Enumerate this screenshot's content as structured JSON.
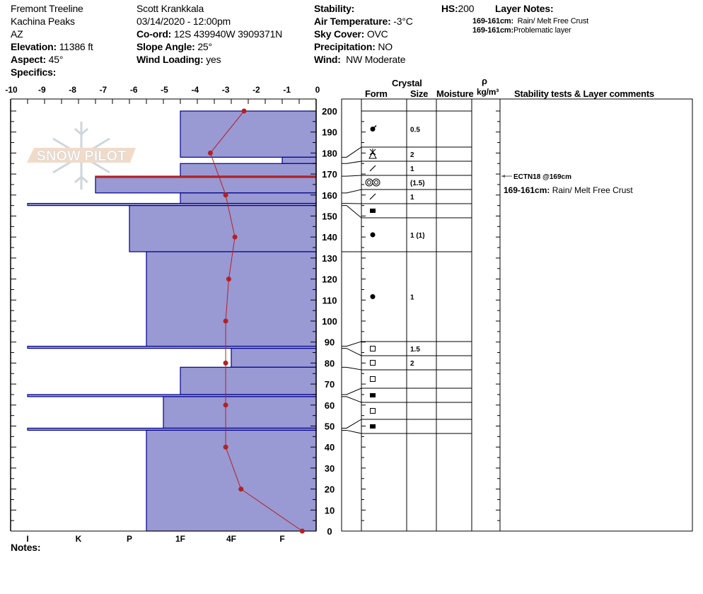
{
  "header": {
    "location": "Fremont Treeline",
    "range": "Kachina Peaks",
    "state": "AZ",
    "elevation_label": "Elevation:",
    "elevation": "11386 ft",
    "aspect_label": "Aspect:",
    "aspect": "45°",
    "specifics_label": "Specifics:",
    "observer": "Scott Krankkala",
    "datetime": "03/14/2020 - 12:00pm",
    "coord_label": "Co-ord:",
    "coord": "12S 439940W 3909371N",
    "slope_label": "Slope Angle:",
    "slope": "25°",
    "wind_loading_label": "Wind Loading:",
    "wind_loading": "yes",
    "stability_label": "Stability:",
    "air_temp_label": "Air Temperature:",
    "air_temp": "-3°C",
    "sky_label": "Sky Cover:",
    "sky": "OVC",
    "precip_label": "Precipitation:",
    "precip": "NO",
    "wind_label": "Wind:",
    "wind": "NW Moderate",
    "hs_label": "HS:",
    "hs": "200",
    "layer_notes_label": "Layer Notes:",
    "layer_notes": [
      {
        "range": "169-161cm:",
        "text": "Rain/ Melt Free Crust"
      },
      {
        "range": "169-161cm:",
        "text": "Problematic layer"
      }
    ]
  },
  "table_headers": {
    "crystal": "Crystal",
    "form": "Form",
    "size": "Size",
    "moisture": "Moisture",
    "rho": "ρ",
    "density_unit": "kg/m³",
    "comments": "Stability tests & Layer comments"
  },
  "notes_label": "Notes:",
  "logo_text": "SNOW PILOT",
  "stability_test": {
    "text": "ECTN18 @169cm",
    "depth": 169
  },
  "layer_comment": {
    "range": "169-161cm:",
    "text": "Rain/ Melt Free Crust"
  },
  "colors": {
    "layer_fill": "#9999d4",
    "layer_stroke": "#00008b",
    "temp": "#b22222",
    "problem": "#b22222"
  },
  "chart_data": {
    "type": "snow-profile",
    "temperature_axis": {
      "ticks": [
        "-10",
        "-9",
        "-8",
        "-7",
        "-6",
        "-5",
        "-4",
        "-3",
        "-2",
        "-1",
        "0"
      ],
      "range": [
        -10,
        0
      ],
      "unit": "°C"
    },
    "hardness_axis": {
      "ticks": [
        "I",
        "K",
        "P",
        "1F",
        "4F",
        "F"
      ]
    },
    "depth_axis": {
      "ticks": [
        "200",
        "190",
        "180",
        "170",
        "160",
        "150",
        "140",
        "130",
        "120",
        "110",
        "100",
        "90",
        "80",
        "70",
        "60",
        "50",
        "40",
        "30",
        "20",
        "10",
        "0"
      ],
      "range": [
        0,
        200
      ],
      "unit": "cm"
    },
    "temperature_profile": [
      {
        "depth": 200,
        "temp": -2.4
      },
      {
        "depth": 180,
        "temp": -3.5
      },
      {
        "depth": 160,
        "temp": -3.0
      },
      {
        "depth": 140,
        "temp": -2.7
      },
      {
        "depth": 120,
        "temp": -2.9
      },
      {
        "depth": 100,
        "temp": -3.0
      },
      {
        "depth": 80,
        "temp": -3.0
      },
      {
        "depth": 60,
        "temp": -3.0
      },
      {
        "depth": 40,
        "temp": -3.0
      },
      {
        "depth": 20,
        "temp": -2.5
      },
      {
        "depth": 0,
        "temp": -0.5
      }
    ],
    "problem_layer_depth": 169,
    "layers": [
      {
        "top": 200,
        "bottom": 178,
        "hardness": "1F",
        "form": "precip-dot",
        "size": "0.5"
      },
      {
        "top": 178,
        "bottom": 175,
        "hardness": "F",
        "form": "surface-hoar-triangle",
        "size": "2"
      },
      {
        "top": 175,
        "bottom": 169,
        "hardness": "1F",
        "form": "decomposing",
        "size": "1"
      },
      {
        "top": 169,
        "bottom": 161,
        "hardness": "K-",
        "form": "melt-cluster",
        "size": "(1.5)"
      },
      {
        "top": 161,
        "bottom": 156,
        "hardness": "1F",
        "form": "decomposing",
        "size": "1"
      },
      {
        "top": 156,
        "bottom": 155,
        "hardness": "I",
        "form": "ice",
        "size": ""
      },
      {
        "top": 155,
        "bottom": 133,
        "hardness": "P",
        "form": "rounded",
        "size": "1 (1)"
      },
      {
        "top": 133,
        "bottom": 88,
        "hardness": "P-",
        "form": "rounded",
        "size": "1"
      },
      {
        "top": 88,
        "bottom": 87,
        "hardness": "I",
        "form": "faceted",
        "size": "1.5"
      },
      {
        "top": 87,
        "bottom": 78,
        "hardness": "4F",
        "form": "faceted",
        "size": "2"
      },
      {
        "top": 78,
        "bottom": 65,
        "hardness": "1F",
        "form": "faceted",
        "size": ""
      },
      {
        "top": 65,
        "bottom": 64,
        "hardness": "I",
        "form": "ice",
        "size": ""
      },
      {
        "top": 64,
        "bottom": 49,
        "hardness": "1F+",
        "form": "faceted",
        "size": ""
      },
      {
        "top": 49,
        "bottom": 48,
        "hardness": "I",
        "form": "ice",
        "size": ""
      },
      {
        "top": 48,
        "bottom": 0,
        "hardness": "P-",
        "form": "none",
        "size": ""
      }
    ]
  }
}
